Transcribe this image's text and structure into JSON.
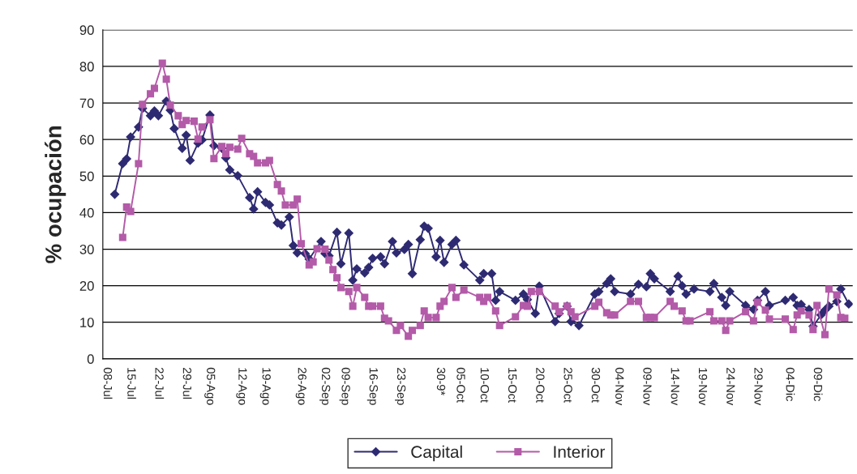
{
  "chart_data": {
    "type": "line",
    "ylabel": "% ocupación",
    "ylim": [
      0,
      90
    ],
    "yticks": [
      0,
      10,
      20,
      30,
      40,
      50,
      60,
      70,
      80,
      90
    ],
    "categories": [
      "08-Jul",
      null,
      null,
      null,
      null,
      null,
      "15-Jul",
      null,
      null,
      null,
      null,
      null,
      null,
      "22-Jul",
      null,
      null,
      null,
      null,
      null,
      null,
      "29-Jul",
      null,
      null,
      null,
      null,
      null,
      "05-Ago",
      null,
      null,
      null,
      null,
      null,
      null,
      null,
      "12-Ago",
      null,
      null,
      null,
      null,
      null,
      "19-Ago",
      null,
      null,
      null,
      null,
      null,
      null,
      null,
      null,
      "26-Ago",
      null,
      null,
      null,
      null,
      null,
      "02-Sep",
      null,
      null,
      null,
      null,
      "09-Sep",
      null,
      null,
      null,
      null,
      null,
      null,
      "16-Sep",
      null,
      null,
      null,
      null,
      null,
      null,
      "23-Sep",
      null,
      null,
      null,
      null,
      null,
      null,
      null,
      null,
      null,
      "30-9*",
      null,
      null,
      null,
      null,
      "05-Oct",
      null,
      null,
      null,
      null,
      null,
      "10-Oct",
      null,
      null,
      null,
      null,
      null,
      null,
      "15-Oct",
      null,
      null,
      null,
      null,
      null,
      null,
      "20-Oct",
      null,
      null,
      null,
      null,
      null,
      null,
      "25-Oct",
      null,
      null,
      null,
      null,
      null,
      null,
      "30-Oct",
      null,
      null,
      null,
      null,
      null,
      "04-Nov",
      null,
      null,
      null,
      null,
      null,
      null,
      "09-Nov",
      null,
      null,
      null,
      null,
      null,
      null,
      "14-Nov",
      null,
      null,
      null,
      null,
      null,
      null,
      "19-Nov",
      null,
      null,
      null,
      null,
      null,
      null,
      "24-Nov",
      null,
      null,
      null,
      null,
      null,
      null,
      "29-Nov",
      null,
      null,
      null,
      null,
      null,
      null,
      null,
      "04-Dic",
      null,
      null,
      null,
      null,
      null,
      null,
      "09-Dic",
      null,
      null,
      null,
      null,
      null,
      null,
      null,
      null
    ],
    "grid": "y",
    "legend": "bottom",
    "line_style": "solid",
    "series": [
      {
        "name": "Capital",
        "color": "#2e2a72",
        "marker": "diamond",
        "values": [
          null,
          null,
          45,
          null,
          53.4,
          54.7,
          60.7,
          null,
          63.4,
          68.5,
          null,
          66.5,
          67.8,
          66.5,
          null,
          70.5,
          68,
          63,
          null,
          57.6,
          61.2,
          54.3,
          null,
          59,
          59.9,
          null,
          66.7,
          58.3,
          null,
          57.6,
          55,
          51.7,
          null,
          50.1,
          null,
          null,
          44.1,
          41,
          45.7,
          null,
          42.8,
          42.1,
          null,
          37.2,
          36.6,
          null,
          38.8,
          31,
          29,
          null,
          28.8,
          27.3,
          null,
          null,
          32.1,
          28.8,
          28.2,
          null,
          34.6,
          26,
          null,
          34.4,
          21.5,
          24.6,
          null,
          23.5,
          25,
          27.5,
          null,
          27.9,
          26,
          null,
          32.1,
          29,
          null,
          29.9,
          31.3,
          23.3,
          null,
          32.6,
          36.3,
          35.7,
          null,
          27.9,
          32.4,
          26.4,
          null,
          31.3,
          32.4,
          null,
          25.7,
          null,
          null,
          null,
          21.5,
          23.3,
          null,
          23.3,
          16,
          18.4,
          null,
          null,
          null,
          16,
          null,
          17.7,
          16.2,
          null,
          12.4,
          19.9,
          null,
          null,
          null,
          10.2,
          12.4,
          null,
          14.4,
          10.2,
          null,
          9.1,
          null,
          null,
          null,
          17.7,
          18.4,
          null,
          20.6,
          21.9,
          18.4,
          null,
          null,
          null,
          17.7,
          null,
          20.4,
          null,
          19.7,
          23.3,
          21.9,
          null,
          null,
          null,
          18.4,
          null,
          22.6,
          20,
          17.7,
          null,
          19.1,
          null,
          null,
          null,
          18.4,
          20.6,
          null,
          16.8,
          14.6,
          18.4,
          null,
          null,
          null,
          14.6,
          null,
          13.5,
          16,
          null,
          18.4,
          14.6,
          null,
          null,
          null,
          16,
          null,
          16.8,
          14.6,
          14.9,
          null,
          13.5,
          8.9,
          null,
          12,
          13.3,
          14.4,
          null,
          15.7,
          19.1,
          null,
          15
        ]
      },
      {
        "name": "Interior",
        "color": "#b35aa8",
        "marker": "square",
        "values": [
          null,
          null,
          null,
          null,
          33.2,
          41.5,
          40.3,
          null,
          53.4,
          69.6,
          null,
          72.5,
          74,
          null,
          80.9,
          76.5,
          69.4,
          null,
          66.5,
          64.1,
          65.2,
          null,
          65,
          60.1,
          63.4,
          null,
          65.4,
          54.8,
          null,
          58.1,
          56.1,
          57.9,
          null,
          57.4,
          60.3,
          null,
          56.1,
          55.4,
          53.6,
          null,
          53.6,
          54.3,
          null,
          47.7,
          45.9,
          42.1,
          null,
          42.1,
          43.7,
          31.5,
          null,
          25.7,
          26.5,
          30.1,
          null,
          30,
          27,
          24.4,
          22.2,
          19.5,
          null,
          18.4,
          14.4,
          19.5,
          null,
          16.8,
          14.4,
          14.4,
          null,
          14.4,
          11.1,
          10.4,
          null,
          7.8,
          9.1,
          null,
          6.2,
          7.8,
          null,
          9.1,
          13.1,
          11.3,
          null,
          11.3,
          14.4,
          15.7,
          null,
          19.5,
          16.8,
          null,
          18.8,
          null,
          null,
          null,
          16.8,
          15.7,
          16.8,
          null,
          13.1,
          9.1,
          null,
          null,
          null,
          11.5,
          null,
          14.6,
          14.4,
          18.4,
          null,
          18.4,
          null,
          null,
          null,
          14.4,
          12.9,
          null,
          14.4,
          12.9,
          11.5,
          null,
          null,
          null,
          null,
          14.4,
          15.5,
          null,
          12.6,
          12,
          12,
          null,
          null,
          null,
          15.7,
          null,
          15.7,
          null,
          11.3,
          11.3,
          11.3,
          null,
          null,
          null,
          15.7,
          14.4,
          null,
          13.1,
          10.4,
          10.4,
          null,
          null,
          null,
          null,
          12.9,
          10.4,
          null,
          10.4,
          7.8,
          10.4,
          null,
          null,
          null,
          12.9,
          null,
          10.4,
          15.5,
          null,
          13.3,
          10.9,
          null,
          null,
          null,
          10.9,
          null,
          8,
          12,
          13.1,
          null,
          12,
          8,
          14.6,
          null,
          6.6,
          19.1,
          null,
          17.5,
          11.3,
          11.1,
          null
        ]
      }
    ]
  }
}
